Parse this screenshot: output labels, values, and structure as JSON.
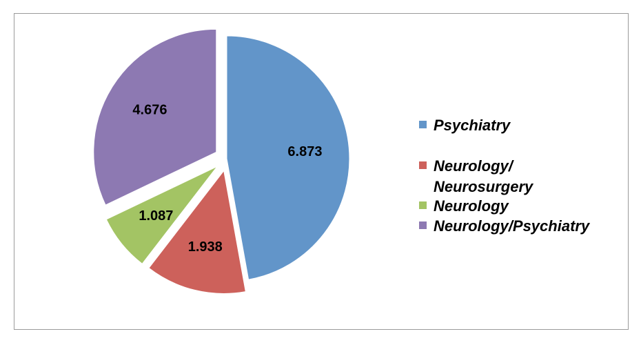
{
  "chart_data": {
    "type": "pie",
    "title": "",
    "categories": [
      "Psychiatry",
      "Neurology/\nNeurosurgery",
      "Neurology",
      "Neurology/Psychiatry"
    ],
    "values": [
      6.873,
      1.938,
      1.087,
      4.676
    ],
    "value_labels": [
      "6.873",
      "1.938",
      "1.087",
      "4.676"
    ],
    "colors": [
      "#6295c9",
      "#cd615b",
      "#a3c464",
      "#8d79b2"
    ],
    "exploded": [
      false,
      true,
      true,
      true
    ],
    "legend_position": "right",
    "start_angle": "12 o'clock",
    "direction": "clockwise"
  }
}
